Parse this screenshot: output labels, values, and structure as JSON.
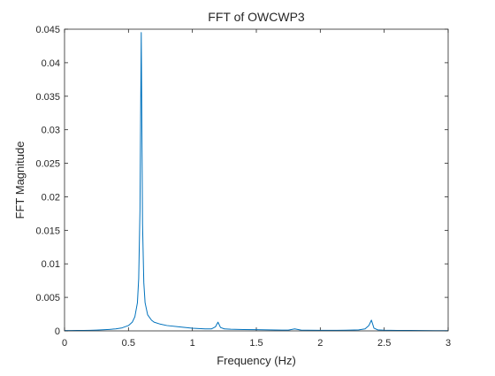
{
  "chart_data": {
    "type": "line",
    "title": "FFT of OWCWP3",
    "xlabel": "Frequency (Hz)",
    "ylabel": "FFT Magnitude",
    "xlim": [
      0,
      3
    ],
    "ylim": [
      0,
      0.045
    ],
    "xticks": [
      "0",
      "0.5",
      "1",
      "1.5",
      "2",
      "2.5",
      "3"
    ],
    "yticks": [
      "0",
      "0.005",
      "0.01",
      "0.015",
      "0.02",
      "0.025",
      "0.03",
      "0.035",
      "0.04",
      "0.045"
    ],
    "grid": false,
    "line_color": "#0072BD",
    "series": [
      {
        "x": [
          0,
          0.05,
          0.1,
          0.15,
          0.2,
          0.25,
          0.3,
          0.35,
          0.4,
          0.45,
          0.5,
          0.53,
          0.55,
          0.57,
          0.58,
          0.59,
          0.595,
          0.6,
          0.605,
          0.61,
          0.62,
          0.63,
          0.65,
          0.68,
          0.7,
          0.75,
          0.8,
          0.9,
          1.0,
          1.1,
          1.15,
          1.18,
          1.2,
          1.22,
          1.25,
          1.3,
          1.4,
          1.5,
          1.6,
          1.7,
          1.75,
          1.8,
          1.85,
          1.9,
          2.0,
          2.1,
          2.2,
          2.3,
          2.35,
          2.38,
          2.4,
          2.42,
          2.45,
          2.5,
          2.6,
          2.7,
          2.8,
          2.9,
          3.0
        ],
        "y": [
          5e-05,
          5e-05,
          6e-05,
          7e-05,
          9e-05,
          0.00012,
          0.00016,
          0.00022,
          0.0003,
          0.00045,
          0.0008,
          0.0013,
          0.0021,
          0.0042,
          0.0078,
          0.018,
          0.032,
          0.0445,
          0.03,
          0.016,
          0.0072,
          0.0042,
          0.0024,
          0.0016,
          0.0013,
          0.001,
          0.0008,
          0.0006,
          0.0004,
          0.0003,
          0.0003,
          0.0006,
          0.0013,
          0.0005,
          0.0003,
          0.00025,
          0.0002,
          0.00018,
          0.00015,
          0.00012,
          0.00012,
          0.0003,
          0.00012,
          0.0001,
          9e-05,
          8e-05,
          0.0001,
          0.00015,
          0.0003,
          0.0008,
          0.0016,
          0.0004,
          0.00015,
          0.0001,
          7e-05,
          6e-05,
          5e-05,
          4e-05,
          3e-05
        ]
      }
    ]
  }
}
